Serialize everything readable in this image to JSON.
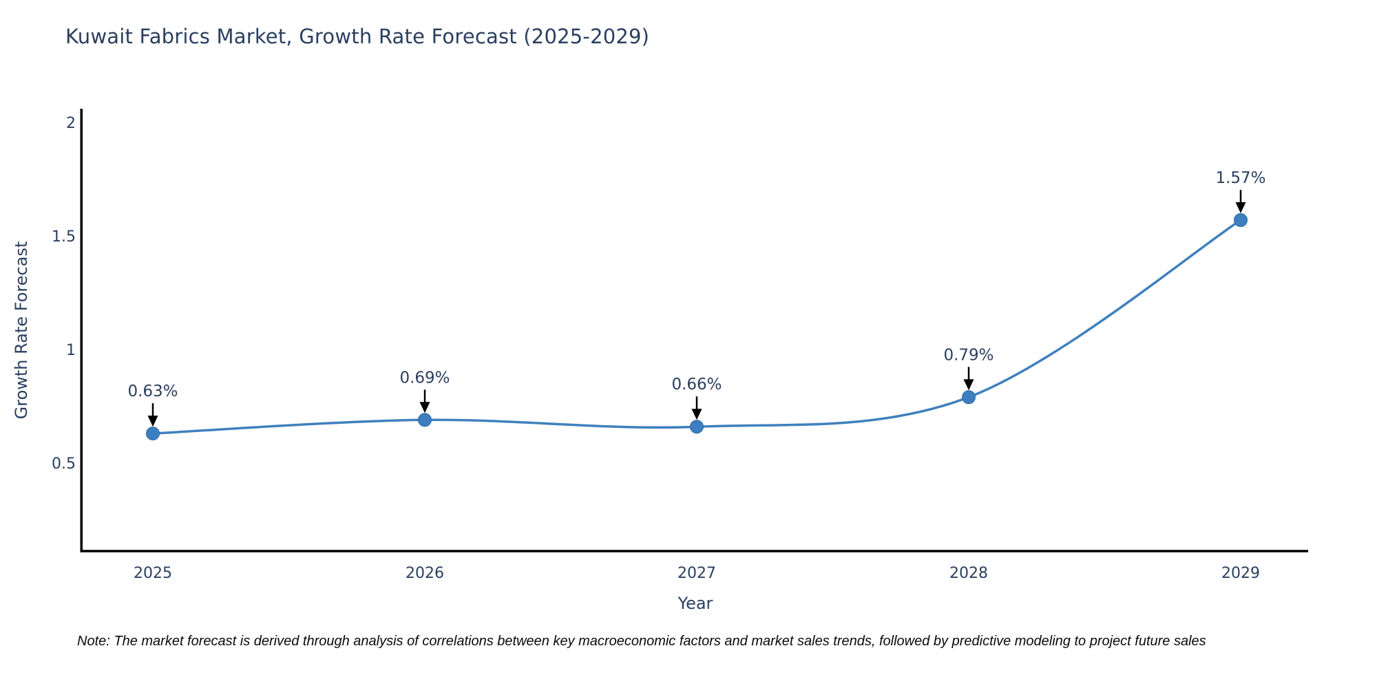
{
  "title": "Kuwait Fabrics Market, Growth Rate Forecast (2025-2029)",
  "note": "Note: The market forecast is derived through analysis of correlations between key macroeconomic factors and market sales trends, followed by predictive modeling to project future sales",
  "chart_data": {
    "type": "line",
    "title": "Kuwait Fabrics Market, Growth Rate Forecast (2025-2029)",
    "xlabel": "Year",
    "ylabel": "Growth Rate Forecast",
    "categories": [
      "2025",
      "2026",
      "2027",
      "2028",
      "2029"
    ],
    "values": [
      0.63,
      0.69,
      0.66,
      0.79,
      1.57
    ],
    "point_labels": [
      "0.63%",
      "0.69%",
      "0.66%",
      "0.79%",
      "1.57%"
    ],
    "yticks": [
      2,
      1.5,
      1,
      0.5
    ],
    "ylim": [
      0.11,
      2.06
    ],
    "grid": false,
    "legend": "none",
    "line_shape": "spline",
    "colors": {
      "line": "#4080bd",
      "marker": "#3c7ebf",
      "marker_edge": "#2f6aa0",
      "text": "#2a3f5f",
      "annotation_arrow": "#000000",
      "spine": "#000000"
    }
  }
}
